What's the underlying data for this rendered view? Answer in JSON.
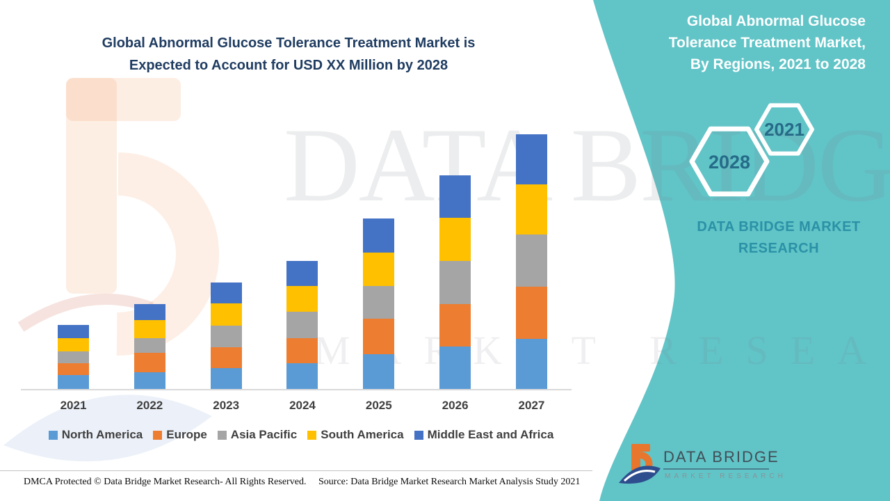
{
  "header": {
    "title_line1": "Global Abnormal Glucose Tolerance Treatment Market is",
    "title_line2": "Expected to Account for USD XX Million by 2028"
  },
  "side_panel": {
    "title_line1": "Global Abnormal Glucose",
    "title_line2": "Tolerance Treatment Market,",
    "title_line3": "By Regions, 2021 to 2028",
    "hexagon_small_label": "2021",
    "hexagon_big_label": "2028",
    "brand_line1": "DATA BRIDGE MARKET",
    "brand_line2": "RESEARCH",
    "panel_color": "#61C4C7",
    "hex_label_color": "#266B88"
  },
  "chart_data": {
    "type": "bar",
    "stacked": true,
    "title": "Global Abnormal Glucose Tolerance Treatment Market is Expected to Account for USD XX Million by 2028",
    "value_axis": "unlabeled (USD XX Million, values masked)",
    "grid": false,
    "legend_position": "bottom",
    "categories": [
      "2021",
      "2022",
      "2023",
      "2024",
      "2025",
      "2026",
      "2027"
    ],
    "series": [
      {
        "name": "North America",
        "color": "#5B9BD5",
        "values": [
          20,
          24,
          30,
          37,
          50,
          61,
          72
        ]
      },
      {
        "name": "Europe",
        "color": "#ED7D31",
        "values": [
          17,
          28,
          30,
          36,
          51,
          61,
          75
        ]
      },
      {
        "name": "Asia Pacific",
        "color": "#A5A5A5",
        "values": [
          17,
          21,
          31,
          38,
          47,
          62,
          75
        ]
      },
      {
        "name": "South America",
        "color": "#FFC000",
        "values": [
          19,
          26,
          32,
          37,
          48,
          62,
          72
        ]
      },
      {
        "name": "Middle East and Africa",
        "color": "#4472C4",
        "values": [
          19,
          23,
          30,
          36,
          49,
          61,
          72
        ]
      }
    ],
    "units_note": "relative stacked segment sizes (no numeric axis shown in figure)"
  },
  "watermark": {
    "big_text": "DATA BRIDGE",
    "sub_text": "MARKET RESEARCH"
  },
  "footer": {
    "dmca": "DMCA Protected © Data Bridge Market Research- All Rights Reserved.",
    "source": "Source: Data Bridge Market Research Market Analysis Study 2021"
  },
  "logo": {
    "name": "DATA BRIDGE",
    "tagline": "MARKET RESEARCH"
  }
}
